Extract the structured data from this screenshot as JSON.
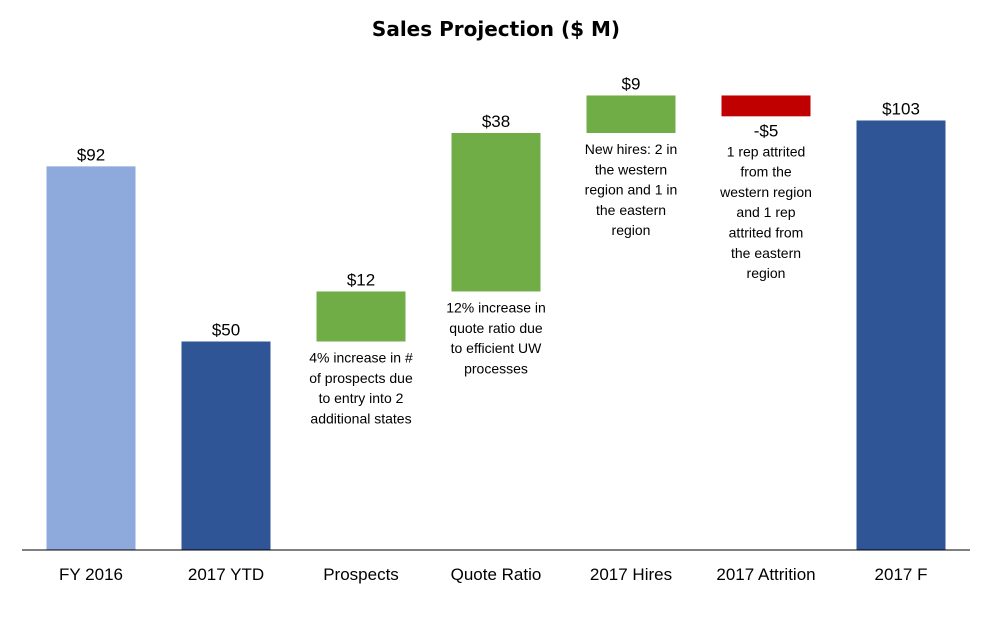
{
  "chart_data": {
    "type": "bar",
    "subtype": "waterfall",
    "title": "Sales Projection ($ M)",
    "xlabel": "",
    "ylabel": "",
    "ylim": [
      0,
      115
    ],
    "grid": false,
    "legend": "none",
    "categories": [
      "FY 2016",
      "2017 YTD",
      "Prospects",
      "Quote Ratio",
      "2017 Hires",
      "2017 Attrition",
      "2017 F"
    ],
    "bars": [
      {
        "category": "FY 2016",
        "base": 0,
        "value": 92,
        "kind": "total",
        "label": "$92",
        "color": "#8EA9DB",
        "note": []
      },
      {
        "category": "2017 YTD",
        "base": 0,
        "value": 50,
        "kind": "total",
        "label": "$50",
        "color": "#2F5597",
        "note": []
      },
      {
        "category": "Prospects",
        "base": 50,
        "value": 12,
        "kind": "increase",
        "label": "$12",
        "color": "#70AD47",
        "note": [
          "4% increase in #",
          "of prospects due",
          "to entry into 2",
          "additional states"
        ]
      },
      {
        "category": "Quote Ratio",
        "base": 62,
        "value": 38,
        "kind": "increase",
        "label": "$38",
        "color": "#70AD47",
        "note": [
          "12% increase in",
          "quote ratio due",
          "to efficient UW",
          "processes"
        ]
      },
      {
        "category": "2017 Hires",
        "base": 100,
        "value": 9,
        "kind": "increase",
        "label": "$9",
        "color": "#70AD47",
        "note": [
          "New hires: 2 in",
          "the western",
          "region and 1 in",
          "the eastern",
          "region"
        ]
      },
      {
        "category": "2017 Attrition",
        "base": 109,
        "value": -5,
        "kind": "decrease",
        "label": "-$5",
        "color": "#C00000",
        "note": [
          "1 rep attrited",
          "from the",
          "western region",
          "and 1 rep",
          "attrited from",
          "the eastern",
          "region"
        ]
      },
      {
        "category": "2017 F",
        "base": 0,
        "value": 103,
        "kind": "total",
        "label": "$103",
        "color": "#2F5597",
        "note": []
      }
    ]
  }
}
